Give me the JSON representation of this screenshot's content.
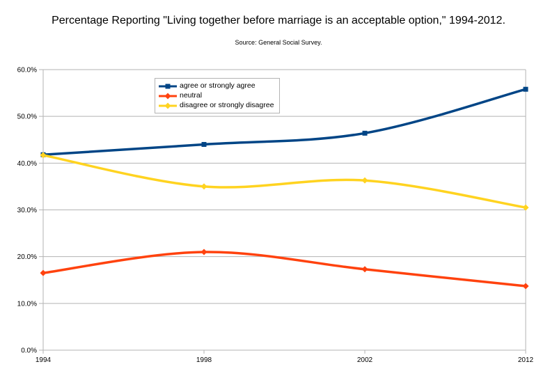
{
  "page": {
    "title": "Percentage Reporting \"Living together before marriage is an acceptable option,\" 1994-2012.",
    "subtitle": "Source: General Social Survey."
  },
  "chart_data": {
    "type": "line",
    "title": "Percentage Reporting \"Living together before marriage is an acceptable option,\" 1994-2012.",
    "subtitle": "Source: General Social Survey.",
    "categories": [
      "1994",
      "1998",
      "2002",
      "2012"
    ],
    "series": [
      {
        "name": "agree or strongly agree",
        "color": "#004586",
        "marker": "square",
        "values": [
          41.8,
          44.0,
          46.4,
          55.8
        ]
      },
      {
        "name": "neutral",
        "color": "#ff420e",
        "marker": "diamond",
        "values": [
          16.5,
          21.0,
          17.3,
          13.7
        ]
      },
      {
        "name": "disagree or strongly disagree",
        "color": "#ffd320",
        "marker": "diamond",
        "values": [
          41.7,
          35.0,
          36.3,
          30.5
        ]
      }
    ],
    "xlabel": "",
    "ylabel": "",
    "ylim": [
      0,
      60
    ],
    "ytick_step": 10,
    "ytick_suffix": "%",
    "ytick_decimals": 1,
    "grid": "horizontal",
    "legend_position": "top-left-inside",
    "axis_color": "#b3b3b3",
    "text_color": "#000000",
    "background": "#ffffff"
  }
}
